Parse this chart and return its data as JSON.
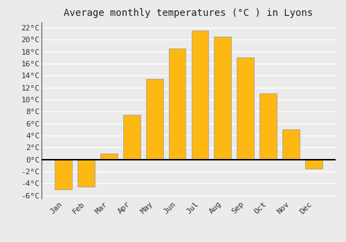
{
  "title": "Average monthly temperatures (°C ) in Lyons",
  "months": [
    "Jan",
    "Feb",
    "Mar",
    "Apr",
    "May",
    "Jun",
    "Jul",
    "Aug",
    "Sep",
    "Oct",
    "Nov",
    "Dec"
  ],
  "values": [
    -5.0,
    -4.5,
    1.0,
    7.5,
    13.5,
    18.5,
    21.5,
    20.5,
    17.0,
    11.0,
    5.0,
    -1.5
  ],
  "bar_color_top": "#FDB813",
  "bar_color_bottom": "#F5A623",
  "bar_edge_color": "#999999",
  "ylim": [
    -6.5,
    23.0
  ],
  "yticks": [
    -6,
    -4,
    -2,
    0,
    2,
    4,
    6,
    8,
    10,
    12,
    14,
    16,
    18,
    20,
    22
  ],
  "ytick_labels": [
    "-6°C",
    "-4°C",
    "-2°C",
    "0°C",
    "2°C",
    "4°C",
    "6°C",
    "8°C",
    "10°C",
    "12°C",
    "14°C",
    "16°C",
    "18°C",
    "20°C",
    "22°C"
  ],
  "background_color": "#ebebeb",
  "plot_bg_color": "#ebebeb",
  "grid_color": "#ffffff",
  "title_fontsize": 10,
  "tick_fontsize": 8,
  "bar_width": 0.75,
  "figsize": [
    5.0,
    3.5
  ],
  "dpi": 100
}
